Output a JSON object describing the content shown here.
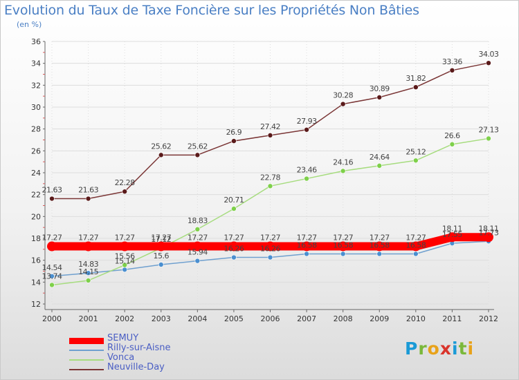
{
  "title": "Evolution du Taux de Taxe Foncière sur les Propriétés Non Bâties",
  "subtitle": "(en %)",
  "logo": {
    "text": "Proxiti",
    "letters": [
      {
        "ch": "P",
        "color": "#1a9ad6"
      },
      {
        "ch": "r",
        "color": "#7ab83a"
      },
      {
        "ch": "o",
        "color": "#e8a21a"
      },
      {
        "ch": "x",
        "color": "#d9342b"
      },
      {
        "ch": "i",
        "color": "#1a9ad6"
      },
      {
        "ch": "t",
        "color": "#7ab83a"
      },
      {
        "ch": "i",
        "color": "#e8a21a"
      }
    ]
  },
  "chart_data": {
    "type": "line",
    "x": [
      "2000",
      "2001",
      "2002",
      "2003",
      "2004",
      "2005",
      "2006",
      "2007",
      "2008",
      "2009",
      "2010",
      "2011",
      "2012"
    ],
    "ylim": [
      12,
      36
    ],
    "yticks": [
      12,
      14,
      16,
      18,
      20,
      22,
      24,
      26,
      28,
      30,
      32,
      34,
      36
    ],
    "grid": true,
    "legend": "bottom-left",
    "series": [
      {
        "name": "SEMUY",
        "color": "#ff0000",
        "values": [
          17.27,
          17.27,
          17.27,
          17.27,
          17.27,
          17.27,
          17.27,
          17.27,
          17.27,
          17.27,
          17.27,
          18.11,
          18.11
        ],
        "labels": [
          "17.27",
          "17.27",
          "17.27",
          "17.27",
          "17.27",
          "17.27",
          "17.27",
          "17.27",
          "17.27",
          "17.27",
          "17.27",
          "18.11",
          "18.11"
        ]
      },
      {
        "name": "Rilly-sur-Aisne",
        "color": "#6fa0cf",
        "values": [
          14.54,
          14.83,
          15.14,
          15.6,
          15.94,
          16.26,
          16.26,
          16.58,
          16.58,
          16.58,
          16.58,
          17.55,
          17.73
        ],
        "labels": [
          "14.54",
          "14.83",
          "15.14",
          "15.6",
          "15.94",
          "16.26",
          "16.26",
          "16.58",
          "16.58",
          "16.58",
          "16.58",
          "17.55",
          "17.73"
        ]
      },
      {
        "name": "Vonca",
        "color": "#a6dc7e",
        "values": [
          13.74,
          14.15,
          15.56,
          17.12,
          18.83,
          20.71,
          22.78,
          23.46,
          24.16,
          24.64,
          25.12,
          26.6,
          27.13
        ],
        "labels": [
          "13.74",
          "14.15",
          "15.56",
          "17.12",
          "18.83",
          "20.71",
          "22.78",
          "23.46",
          "24.16",
          "24.64",
          "25.12",
          "26.6",
          "27.13"
        ]
      },
      {
        "name": "Neuville-Day",
        "color": "#7a3535",
        "values": [
          21.63,
          21.63,
          22.28,
          25.62,
          25.62,
          26.9,
          27.42,
          27.93,
          30.28,
          30.89,
          31.82,
          33.36,
          34.03
        ],
        "labels": [
          "21.63",
          "21.63",
          "22.28",
          "25.62",
          "25.62",
          "26.9",
          "27.42",
          "27.93",
          "30.28",
          "30.89",
          "31.82",
          "33.36",
          "34.03"
        ]
      }
    ]
  }
}
